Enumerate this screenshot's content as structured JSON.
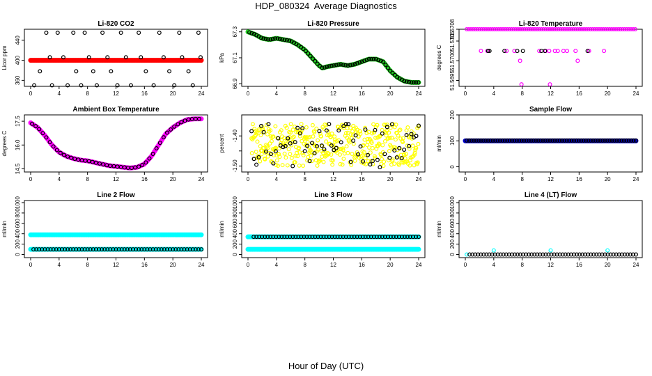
{
  "figure": {
    "title": "HDP_080324  Average Diagnostics",
    "xlabel": "Hour of Day (UTC)"
  },
  "colors": {
    "black": "#000000",
    "red": "#ff0000",
    "green": "#22cc22",
    "magenta": "#ff00ff",
    "yellow": "#ffff00",
    "blue": "#0000cc",
    "cyan": "#00ffff"
  },
  "chart_data": [
    {
      "id": "co2",
      "type": "scatter",
      "title": "Li-820 CO2",
      "ylabel": "Licor ppm",
      "xlim": [
        0,
        24
      ],
      "ylim": [
        348,
        462
      ],
      "xticks": [
        0,
        4,
        8,
        12,
        16,
        20,
        24
      ],
      "yticks": [
        360,
        400,
        440
      ],
      "ytick_labels": [
        "360",
        "400",
        "440"
      ],
      "series": [
        {
          "name": "average",
          "color": "red",
          "marker": "dot",
          "x_start": 0,
          "x_end": 24,
          "n": 145,
          "y": 400
        },
        {
          "name": "samples",
          "color": "black",
          "marker": "open",
          "x": [
            0.5,
            1.3,
            2.2,
            2.7,
            3.0,
            3.8,
            4.6,
            5.2,
            6.0,
            6.4,
            7.1,
            7.6,
            8.2,
            8.8,
            9.3,
            10.1,
            10.8,
            11.3,
            12.2,
            12.7,
            13.4,
            14.1,
            15.2,
            15.5,
            16.2,
            17.3,
            18.1,
            18.7,
            19.5,
            20.2,
            20.9,
            21.3,
            22.2,
            22.8,
            23.6,
            23.9
          ],
          "y": [
            350,
            378,
            455,
            406,
            350,
            455,
            406,
            350,
            455,
            378,
            350,
            455,
            406,
            378,
            350,
            455,
            406,
            378,
            350,
            455,
            406,
            350,
            455,
            406,
            378,
            350,
            455,
            406,
            378,
            350,
            455,
            406,
            378,
            350,
            455,
            406
          ]
        }
      ]
    },
    {
      "id": "pressure",
      "type": "scatter",
      "title": "Li-820 Pressure",
      "ylabel": "kPa",
      "xlim": [
        0,
        24
      ],
      "ylim": [
        66.88,
        67.32
      ],
      "xticks": [
        0,
        4,
        8,
        12,
        16,
        20,
        24
      ],
      "yticks": [
        66.9,
        67.1,
        67.3
      ],
      "ytick_labels": [
        "66.9",
        "67.1",
        "67.3"
      ],
      "series": [
        {
          "name": "average",
          "color": "green",
          "marker": "dot",
          "knots_x": [
            0,
            1,
            2,
            3,
            4,
            5,
            6,
            7,
            8,
            9,
            10,
            10.5,
            11,
            12,
            13,
            14,
            15,
            16,
            17,
            18,
            19,
            20,
            21,
            22,
            23,
            24
          ],
          "knots_y": [
            67.3,
            67.28,
            67.25,
            67.24,
            67.25,
            67.24,
            67.23,
            67.2,
            67.16,
            67.1,
            67.04,
            67.02,
            67.03,
            67.04,
            67.05,
            67.04,
            67.05,
            67.07,
            67.09,
            67.09,
            67.07,
            67.0,
            66.95,
            66.92,
            66.91,
            66.91
          ]
        },
        {
          "name": "samples",
          "color": "black",
          "marker": "open",
          "step": 0.33,
          "x_start": 0.2,
          "x_end": 24
        }
      ]
    },
    {
      "id": "temperature",
      "type": "scatter",
      "title": "Li-820 Temperature",
      "ylabel": "degrees C",
      "xlim": [
        0,
        24
      ],
      "ylim": [
        51.56935,
        51.5708
      ],
      "xticks": [
        0,
        4,
        8,
        12,
        16,
        20,
        24
      ],
      "yticks": [
        51.5695,
        51.57,
        51.5705,
        51.5708
      ],
      "ytick_labels": [
        "51.5695",
        "51.5700",
        "51.5705",
        "51.5708"
      ],
      "series": [
        {
          "name": "average",
          "color": "magenta",
          "marker": "open",
          "x": [
            0.2,
            0.5,
            0.8,
            1.1,
            1.4,
            1.7,
            2.0,
            2.3,
            2.6,
            2.9,
            3.2,
            3.5,
            3.8,
            4.1,
            4.4,
            4.7,
            5.0,
            5.3,
            5.6,
            5.9,
            6.2,
            6.5,
            6.8,
            7.1,
            7.4,
            7.7,
            8.0,
            8.3,
            8.6,
            8.9,
            9.2,
            9.5,
            9.8,
            10.1,
            10.4,
            10.7,
            11.0,
            11.3,
            11.6,
            11.9,
            12.2,
            12.5,
            12.8,
            13.1,
            13.4,
            13.7,
            14.0,
            14.3,
            14.6,
            14.9,
            15.2,
            15.5,
            15.8,
            16.1,
            16.4,
            16.7,
            17.0,
            17.3,
            17.6,
            17.9,
            18.2,
            18.5,
            18.8,
            19.1,
            19.4,
            19.7,
            20.0,
            20.3,
            20.6,
            20.9,
            21.2,
            21.5,
            21.8,
            22.1,
            22.4,
            22.7,
            23.0,
            23.3,
            23.6,
            23.9,
            2.2,
            3.1,
            5.8,
            6.9,
            10.4,
            11.3,
            11.8,
            12.6,
            13.0,
            13.8,
            14.3,
            15.5,
            17.4,
            19.5,
            7.7,
            7.9,
            11.9,
            15.8
          ],
          "y": [
            51.5708,
            51.5708,
            51.5708,
            51.5708,
            51.5708,
            51.5708,
            51.5708,
            51.5708,
            51.5708,
            51.5708,
            51.5708,
            51.5708,
            51.5708,
            51.5708,
            51.5708,
            51.5708,
            51.5708,
            51.5708,
            51.5708,
            51.5708,
            51.5708,
            51.5708,
            51.5708,
            51.5708,
            51.5708,
            51.5708,
            51.5708,
            51.5708,
            51.5708,
            51.5708,
            51.5708,
            51.5708,
            51.5708,
            51.5708,
            51.5708,
            51.5708,
            51.5708,
            51.5708,
            51.5708,
            51.5708,
            51.5708,
            51.5708,
            51.5708,
            51.5708,
            51.5708,
            51.5708,
            51.5708,
            51.5708,
            51.5708,
            51.5708,
            51.5708,
            51.5708,
            51.5708,
            51.5708,
            51.5708,
            51.5708,
            51.5708,
            51.5708,
            51.5708,
            51.5708,
            51.5708,
            51.5708,
            51.5708,
            51.5708,
            51.5708,
            51.5708,
            51.5708,
            51.5708,
            51.5708,
            51.5708,
            51.5708,
            51.5708,
            51.5708,
            51.5708,
            51.5708,
            51.5708,
            51.5708,
            51.5708,
            51.5708,
            51.5708,
            51.57025,
            51.57025,
            51.57025,
            51.57025,
            51.57025,
            51.57025,
            51.57025,
            51.57025,
            51.57025,
            51.57025,
            51.57025,
            51.57025,
            51.57025,
            51.57025,
            51.57,
            51.5694,
            51.5694,
            51.57
          ]
        },
        {
          "name": "samples",
          "color": "black",
          "marker": "open",
          "x": [
            3.2,
            3.4,
            5.5,
            7.3,
            8.1,
            10.7,
            11.2,
            17.2
          ],
          "y": [
            51.57025,
            51.57025,
            51.57025,
            51.57025,
            51.57025,
            51.57025,
            51.57025,
            51.57025
          ]
        }
      ]
    },
    {
      "id": "ambient",
      "type": "scatter",
      "title": "Ambient Box Temperature",
      "ylabel": "degrees C",
      "xlim": [
        0,
        24
      ],
      "ylim": [
        14.3,
        17.9
      ],
      "xticks": [
        0,
        4,
        8,
        12,
        16,
        20,
        24
      ],
      "yticks": [
        14.5,
        16.0,
        17.5
      ],
      "ytick_labels": [
        "14.5",
        "16.0",
        "17.5"
      ],
      "series": [
        {
          "name": "average",
          "color": "magenta",
          "marker": "dot",
          "knots_x": [
            0,
            1,
            2,
            3,
            4,
            5,
            6,
            7,
            8,
            9,
            10,
            11,
            12,
            13,
            14,
            15,
            16,
            17,
            18,
            19,
            20,
            21,
            22,
            23,
            24
          ],
          "knots_y": [
            17.4,
            17.1,
            16.6,
            16.0,
            15.55,
            15.3,
            15.15,
            15.05,
            15.0,
            14.9,
            14.8,
            14.7,
            14.65,
            14.6,
            14.55,
            14.6,
            14.8,
            15.3,
            16.0,
            16.7,
            17.1,
            17.4,
            17.6,
            17.65,
            17.65
          ]
        },
        {
          "name": "samples",
          "color": "black",
          "marker": "open",
          "step": 0.5,
          "x_start": 0.2,
          "x_end": 24
        }
      ]
    },
    {
      "id": "rh",
      "type": "scatter",
      "title": "Gas Stream RH",
      "ylabel": "percent",
      "xlim": [
        0,
        24
      ],
      "ylim": [
        -1.52,
        -1.33
      ],
      "xticks": [
        0,
        4,
        8,
        12,
        16,
        20,
        24
      ],
      "yticks": [
        -1.5,
        -1.45,
        -1.4
      ],
      "ytick_labels": [
        "-1.50",
        "",
        "-1.40"
      ],
      "series": [
        {
          "name": "average",
          "color": "yellow",
          "marker": "open",
          "x_start": 0.5,
          "x_end": 24,
          "n": 400,
          "y_center": -1.43,
          "y_spread": 0.07
        },
        {
          "name": "samples",
          "color": "black",
          "marker": "open",
          "x_start": 0.5,
          "x_end": 24,
          "n": 70,
          "y_center": -1.43,
          "y_spread": 0.075
        }
      ]
    },
    {
      "id": "sample_flow",
      "type": "scatter",
      "title": "Sample Flow",
      "ylabel": "ml/min",
      "xlim": [
        0,
        24
      ],
      "ylim": [
        -20,
        200
      ],
      "xticks": [
        0,
        4,
        8,
        12,
        16,
        20,
        24
      ],
      "yticks": [
        0,
        100,
        200
      ],
      "ytick_labels": [
        "0",
        "100",
        "200"
      ],
      "series": [
        {
          "name": "average",
          "color": "blue",
          "marker": "dot",
          "x_start": 0,
          "x_end": 24,
          "n": 150,
          "y": 100
        },
        {
          "name": "samples",
          "color": "black",
          "marker": "open",
          "x_start": 0.2,
          "x_end": 24,
          "n": 72,
          "y": 101
        }
      ]
    },
    {
      "id": "line2",
      "type": "scatter",
      "title": "Line 2 Flow",
      "ylabel": "ml/min",
      "xlim": [
        0,
        24
      ],
      "ylim": [
        -60,
        1040
      ],
      "xticks": [
        0,
        4,
        8,
        12,
        16,
        20,
        24
      ],
      "yticks": [
        0,
        200,
        400,
        600,
        800,
        1000
      ],
      "ytick_labels": [
        "0",
        "200",
        "400",
        "600",
        "800",
        "1000"
      ],
      "series": [
        {
          "name": "average-high",
          "color": "cyan",
          "marker": "dot",
          "x_start": 0,
          "x_end": 24,
          "n": 150,
          "y": 380
        },
        {
          "name": "average-low",
          "color": "cyan",
          "marker": "dot",
          "x_start": 0,
          "x_end": 24,
          "n": 150,
          "y": 100
        },
        {
          "name": "samples",
          "color": "black",
          "marker": "open",
          "x_start": 0.4,
          "x_end": 24,
          "n": 60,
          "y": 100
        }
      ]
    },
    {
      "id": "line3",
      "type": "scatter",
      "title": "Line 3 Flow",
      "ylabel": "ml/min",
      "xlim": [
        0,
        24
      ],
      "ylim": [
        -60,
        1040
      ],
      "xticks": [
        0,
        4,
        8,
        12,
        16,
        20,
        24
      ],
      "yticks": [
        0,
        200,
        400,
        600,
        800,
        1000
      ],
      "ytick_labels": [
        "0",
        "200",
        "400",
        "600",
        "800",
        "1000"
      ],
      "series": [
        {
          "name": "average-high",
          "color": "cyan",
          "marker": "dot",
          "x_start": 0,
          "x_end": 24,
          "n": 150,
          "y": 340
        },
        {
          "name": "average-low",
          "color": "cyan",
          "marker": "dot",
          "x_start": 0,
          "x_end": 24,
          "n": 150,
          "y": 100
        },
        {
          "name": "samples",
          "color": "black",
          "marker": "open",
          "x_start": 0.8,
          "x_end": 24,
          "n": 60,
          "y": 340
        }
      ]
    },
    {
      "id": "line4",
      "type": "scatter",
      "title": "Line 4 (LT) Flow",
      "ylabel": "ml/min",
      "xlim": [
        0,
        24
      ],
      "ylim": [
        -60,
        1040
      ],
      "xticks": [
        0,
        4,
        8,
        12,
        16,
        20,
        24
      ],
      "yticks": [
        0,
        200,
        400,
        600,
        800,
        1000
      ],
      "ytick_labels": [
        "0",
        "200",
        "400",
        "600",
        "800",
        "1000"
      ],
      "series": [
        {
          "name": "average",
          "color": "cyan",
          "marker": "open",
          "x": [
            0.2,
            4.0,
            12.0,
            20.0
          ],
          "y": [
            0,
            80,
            80,
            80
          ]
        },
        {
          "name": "samples",
          "color": "black",
          "marker": "open",
          "x_start": 0.6,
          "x_end": 24,
          "n": 60,
          "y": 0
        }
      ]
    }
  ]
}
